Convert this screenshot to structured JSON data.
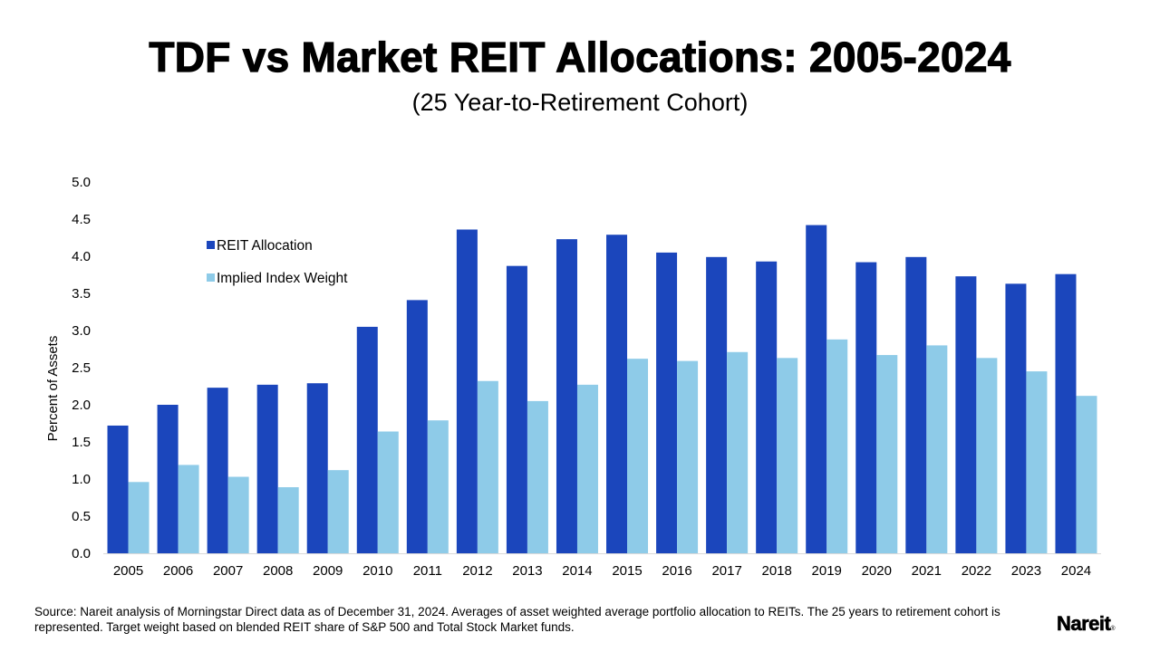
{
  "header": {
    "title": "TDF vs Market REIT Allocations: 2005-2024",
    "subtitle": "(25 Year-to-Retirement Cohort)"
  },
  "chart_data": {
    "type": "bar",
    "title": "TDF vs Market REIT Allocations: 2005-2024",
    "subtitle": "(25 Year-to-Retirement Cohort)",
    "xlabel": "",
    "ylabel": "Percent of Assets",
    "ylim": [
      0,
      5
    ],
    "ytick_step": 0.5,
    "yticks": [
      "0.0",
      "0.5",
      "1.0",
      "1.5",
      "2.0",
      "2.5",
      "3.0",
      "3.5",
      "4.0",
      "4.5",
      "5.0"
    ],
    "grid": false,
    "legend_position": "upper-left",
    "categories": [
      "2005",
      "2006",
      "2007",
      "2008",
      "2009",
      "2010",
      "2011",
      "2012",
      "2013",
      "2014",
      "2015",
      "2016",
      "2017",
      "2018",
      "2019",
      "2020",
      "2021",
      "2022",
      "2023",
      "2024"
    ],
    "series": [
      {
        "name": "REIT Allocation",
        "color": "#1b46bc",
        "values": [
          1.72,
          2.0,
          2.23,
          2.27,
          2.29,
          3.05,
          3.41,
          4.36,
          3.87,
          4.23,
          4.29,
          4.05,
          3.99,
          3.93,
          4.42,
          3.92,
          3.99,
          3.73,
          3.63,
          3.76
        ]
      },
      {
        "name": "Implied Index Weight",
        "color": "#8ecbe8",
        "values": [
          0.96,
          1.19,
          1.03,
          0.89,
          1.12,
          1.64,
          1.79,
          2.32,
          2.05,
          2.27,
          2.62,
          2.59,
          2.71,
          2.63,
          2.88,
          2.67,
          2.8,
          2.63,
          2.45,
          2.12
        ]
      }
    ]
  },
  "footer": {
    "source": "Source: Nareit analysis of Morningstar Direct data as of December 31, 2024. Averages of asset weighted average portfolio allocation to REITs. The 25 years to retirement cohort is represented. Target weight based on blended REIT share of S&P 500 and Total Stock Market funds.",
    "logo_text": "Nareit",
    "logo_mark": "®"
  }
}
